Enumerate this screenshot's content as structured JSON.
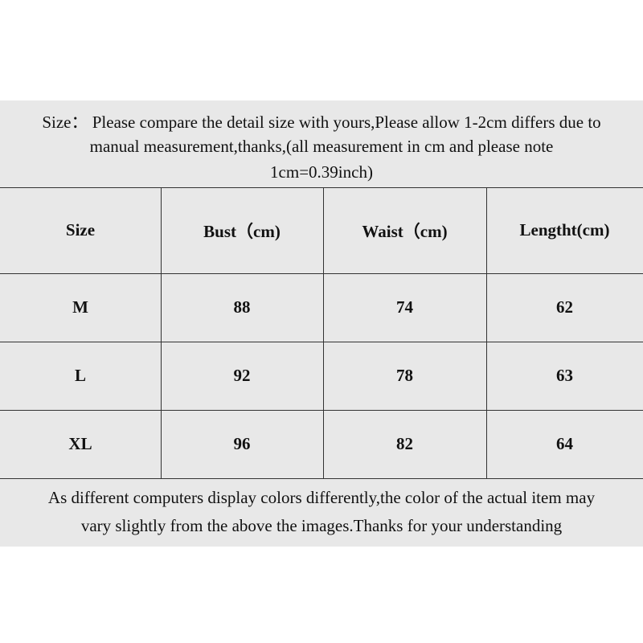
{
  "header": {
    "lines": [
      "Size：  Please compare the detail size with yours,Please allow 1-2cm differs due to",
      "manual measurement,thanks,(all measurement in cm and please note",
      "1cm=0.39inch)"
    ]
  },
  "table": {
    "columns": [
      "Size",
      "Bust（cm)",
      "Waist（cm)",
      "Lengtht(cm)"
    ],
    "rows": [
      [
        "M",
        88,
        74,
        62
      ],
      [
        "L",
        92,
        78,
        63
      ],
      [
        "XL",
        96,
        82,
        64
      ]
    ]
  },
  "footer": {
    "lines": [
      "As different computers display colors differently,the color of the actual item may",
      "vary slightly from the above the images.Thanks for your understanding"
    ]
  }
}
